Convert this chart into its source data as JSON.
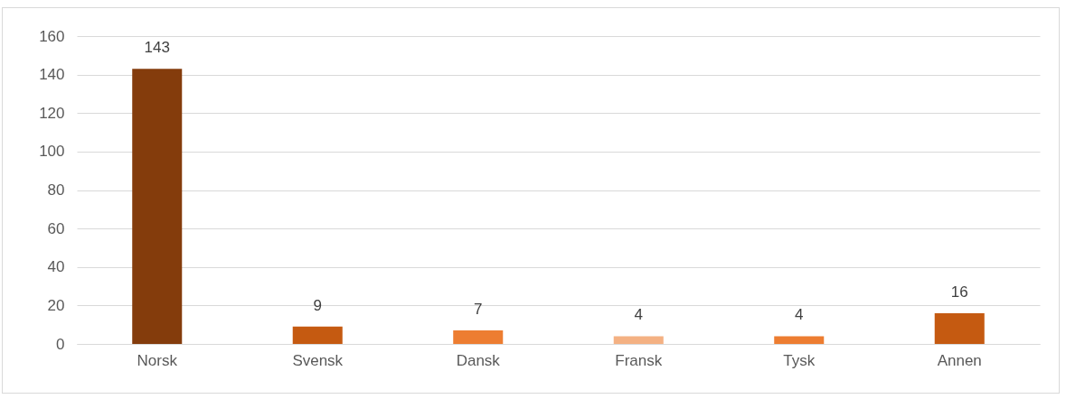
{
  "chart_data": {
    "type": "bar",
    "categories": [
      "Norsk",
      "Svensk",
      "Dansk",
      "Fransk",
      "Tysk",
      "Annen"
    ],
    "values": [
      143,
      9,
      7,
      4,
      4,
      16
    ],
    "colors": [
      "#843c0c",
      "#c55a11",
      "#ed7d31",
      "#f4b183",
      "#ed7d31",
      "#c55a11"
    ],
    "ylim": [
      0,
      160
    ],
    "yticks": [
      0,
      20,
      40,
      60,
      80,
      100,
      120,
      140,
      160
    ],
    "grid": "y",
    "data_labels": true
  }
}
